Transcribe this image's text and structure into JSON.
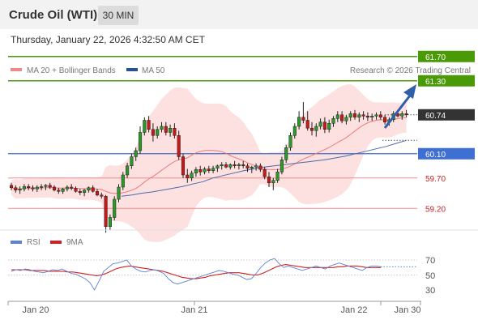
{
  "header": {
    "title": "Crude Oil (WTI)",
    "timeframe": "30 MIN"
  },
  "timestamp": "Thursday, January 22, 2026 4:32:50 AM CET",
  "legend": {
    "ma20_label": "MA 20 + Bollinger Bands",
    "ma50_label": "MA 50",
    "copyright": "Research © 2026 Trading Central",
    "rsi_label": "RSI",
    "ma9_label": "9MA"
  },
  "colors": {
    "green": "#4a9a08",
    "blue": "#3e6fd3",
    "red": "#f08a8a",
    "candle_up": "#2a9a2a",
    "candle_down": "#c81818",
    "band_fill": "#fde0e0",
    "ma20": "#f07878",
    "ma50": "#4a6aa8",
    "rsi": "#5b82d6",
    "rsi_ma": "#d02020",
    "current": "#333333"
  },
  "levels": [
    {
      "label": "61.70",
      "value": 61.7,
      "style": "green-box"
    },
    {
      "label": "61.30",
      "value": 61.3,
      "style": "green-box"
    },
    {
      "label": "60.74",
      "value": 60.74,
      "style": "current"
    },
    {
      "label": "60.10",
      "value": 60.1,
      "style": "blue-box"
    },
    {
      "label": "59.70",
      "value": 59.7,
      "style": "red-text"
    },
    {
      "label": "59.20",
      "value": 59.2,
      "style": "red-text"
    }
  ],
  "x_ticks": [
    "Jan 20",
    "Jan 21",
    "Jan 22",
    "Jan 30"
  ],
  "rsi_ticks": [
    "70",
    "50",
    "30"
  ],
  "chart_data": {
    "type": "candlestick",
    "ohlc": [
      [
        59.58,
        59.62,
        59.5,
        59.54
      ],
      [
        59.54,
        59.58,
        59.46,
        59.5
      ],
      [
        59.5,
        59.56,
        59.44,
        59.52
      ],
      [
        59.52,
        59.6,
        59.48,
        59.56
      ],
      [
        59.56,
        59.6,
        59.5,
        59.54
      ],
      [
        59.54,
        59.58,
        59.48,
        59.52
      ],
      [
        59.52,
        59.58,
        59.47,
        59.55
      ],
      [
        59.55,
        59.6,
        59.5,
        59.56
      ],
      [
        59.56,
        59.6,
        59.5,
        59.58
      ],
      [
        59.58,
        59.62,
        59.52,
        59.55
      ],
      [
        59.55,
        59.58,
        59.48,
        59.5
      ],
      [
        59.5,
        59.54,
        59.44,
        59.48
      ],
      [
        59.48,
        59.54,
        59.44,
        59.52
      ],
      [
        59.52,
        59.58,
        59.48,
        59.55
      ],
      [
        59.55,
        59.6,
        59.5,
        59.53
      ],
      [
        59.53,
        59.56,
        59.46,
        59.48
      ],
      [
        59.48,
        59.52,
        59.42,
        59.46
      ],
      [
        59.46,
        59.52,
        59.4,
        59.5
      ],
      [
        59.5,
        59.56,
        59.46,
        59.54
      ],
      [
        59.54,
        59.58,
        59.46,
        59.48
      ],
      [
        59.48,
        59.52,
        59.4,
        59.42
      ],
      [
        59.42,
        59.46,
        59.36,
        59.4
      ],
      [
        59.4,
        59.42,
        58.8,
        58.9
      ],
      [
        58.9,
        59.1,
        58.85,
        59.05
      ],
      [
        59.05,
        59.4,
        59.0,
        59.35
      ],
      [
        59.35,
        59.6,
        59.3,
        59.55
      ],
      [
        59.55,
        59.8,
        59.5,
        59.75
      ],
      [
        59.75,
        59.95,
        59.7,
        59.9
      ],
      [
        59.9,
        60.1,
        59.85,
        60.05
      ],
      [
        60.05,
        60.2,
        59.98,
        60.15
      ],
      [
        60.15,
        60.55,
        60.1,
        60.45
      ],
      [
        60.45,
        60.7,
        60.4,
        60.65
      ],
      [
        60.65,
        60.72,
        60.45,
        60.5
      ],
      [
        60.5,
        60.6,
        60.3,
        60.4
      ],
      [
        60.4,
        60.55,
        60.35,
        60.5
      ],
      [
        60.5,
        60.62,
        60.45,
        60.55
      ],
      [
        60.55,
        60.62,
        60.4,
        60.45
      ],
      [
        60.45,
        60.58,
        60.38,
        60.52
      ],
      [
        60.52,
        60.6,
        60.35,
        60.4
      ],
      [
        60.4,
        60.48,
        60.0,
        60.05
      ],
      [
        60.05,
        60.1,
        59.7,
        59.75
      ],
      [
        59.75,
        59.85,
        59.62,
        59.7
      ],
      [
        59.7,
        59.82,
        59.65,
        59.78
      ],
      [
        59.78,
        59.88,
        59.72,
        59.84
      ],
      [
        59.84,
        59.9,
        59.74,
        59.8
      ],
      [
        59.8,
        59.88,
        59.76,
        59.85
      ],
      [
        59.85,
        59.9,
        59.78,
        59.82
      ],
      [
        59.82,
        59.9,
        59.78,
        59.86
      ],
      [
        59.86,
        59.92,
        59.8,
        59.9
      ],
      [
        59.9,
        59.96,
        59.84,
        59.92
      ],
      [
        59.92,
        59.96,
        59.86,
        59.88
      ],
      [
        59.88,
        59.94,
        59.84,
        59.92
      ],
      [
        59.92,
        59.98,
        59.86,
        59.9
      ],
      [
        59.9,
        59.95,
        59.84,
        59.92
      ],
      [
        59.92,
        59.98,
        59.86,
        59.9
      ],
      [
        59.9,
        59.94,
        59.8,
        59.86
      ],
      [
        59.86,
        59.9,
        59.78,
        59.88
      ],
      [
        59.88,
        59.94,
        59.82,
        59.9
      ],
      [
        59.9,
        59.94,
        59.8,
        59.84
      ],
      [
        59.84,
        59.88,
        59.68,
        59.72
      ],
      [
        59.72,
        59.8,
        59.55,
        59.62
      ],
      [
        59.62,
        59.7,
        59.5,
        59.66
      ],
      [
        59.66,
        59.85,
        59.62,
        59.8
      ],
      [
        59.8,
        60.05,
        59.76,
        60.0
      ],
      [
        60.0,
        60.25,
        59.95,
        60.2
      ],
      [
        60.2,
        60.45,
        60.15,
        60.4
      ],
      [
        60.4,
        60.6,
        60.35,
        60.55
      ],
      [
        60.55,
        60.8,
        60.5,
        60.7
      ],
      [
        60.7,
        60.95,
        60.6,
        60.65
      ],
      [
        60.65,
        60.8,
        60.48,
        60.52
      ],
      [
        60.52,
        60.62,
        60.4,
        60.48
      ],
      [
        60.48,
        60.6,
        60.38,
        60.55
      ],
      [
        60.55,
        60.68,
        60.5,
        60.62
      ],
      [
        60.62,
        60.7,
        60.44,
        60.5
      ],
      [
        60.5,
        60.66,
        60.45,
        60.6
      ],
      [
        60.6,
        60.72,
        60.54,
        60.68
      ],
      [
        60.68,
        60.8,
        60.62,
        60.74
      ],
      [
        60.74,
        60.8,
        60.6,
        60.64
      ],
      [
        60.64,
        60.74,
        60.58,
        60.7
      ],
      [
        60.7,
        60.8,
        60.64,
        60.76
      ],
      [
        60.76,
        60.82,
        60.66,
        60.7
      ],
      [
        60.7,
        60.78,
        60.62,
        60.74
      ],
      [
        60.74,
        60.8,
        60.66,
        60.72
      ],
      [
        60.72,
        60.78,
        60.64,
        60.7
      ],
      [
        60.7,
        60.76,
        60.64,
        60.72
      ],
      [
        60.72,
        60.78,
        60.66,
        60.74
      ],
      [
        60.74,
        60.8,
        60.66,
        60.7
      ],
      [
        60.7,
        60.74,
        60.58,
        60.62
      ],
      [
        60.62,
        60.7,
        60.56,
        60.66
      ],
      [
        60.66,
        60.8,
        60.62,
        60.76
      ],
      [
        60.76,
        60.82,
        60.7,
        60.72
      ],
      [
        60.72,
        60.8,
        60.66,
        60.76
      ],
      [
        60.76,
        60.82,
        60.7,
        60.74
      ]
    ],
    "ma50": [
      59.4,
      59.42,
      59.45,
      59.47,
      59.5,
      59.53,
      59.56,
      59.6,
      59.64,
      59.7,
      59.74,
      59.78,
      59.82,
      59.85,
      59.88,
      59.9,
      59.92,
      59.94,
      59.96,
      59.98,
      60.0,
      60.03,
      60.06,
      60.1,
      60.14,
      60.18,
      60.22,
      60.27,
      60.32
    ],
    "rsi": [
      55,
      57,
      56,
      58,
      57,
      55,
      54,
      53,
      55,
      57,
      56,
      58,
      55,
      52,
      51,
      48,
      45,
      40,
      30,
      42,
      55,
      60,
      65,
      66,
      68,
      70,
      62,
      58,
      55,
      54,
      56,
      57,
      55,
      52,
      45,
      40,
      38,
      40,
      42,
      44,
      46,
      48,
      50,
      52,
      54,
      56,
      55,
      53,
      51,
      50,
      47,
      44,
      45,
      52,
      60,
      66,
      70,
      72,
      65,
      60,
      62,
      60,
      58,
      56,
      58,
      60,
      62,
      60,
      58,
      62,
      64,
      66,
      64,
      62,
      60,
      58,
      56,
      60,
      62,
      62,
      61
    ],
    "rsi_ma": [
      57,
      57,
      57,
      57,
      56,
      56,
      56,
      56,
      55,
      55,
      55,
      55,
      54,
      54,
      53,
      52,
      51,
      50,
      49,
      50,
      52,
      55,
      58,
      60,
      61,
      62,
      61,
      60,
      59,
      58,
      57,
      56,
      55,
      53,
      51,
      49,
      47,
      46,
      45,
      45,
      46,
      47,
      49,
      50,
      51,
      52,
      53,
      53,
      53,
      52,
      51,
      50,
      50,
      52,
      55,
      58,
      61,
      63,
      64,
      63,
      62,
      61,
      60,
      60,
      60,
      60,
      60,
      60,
      60,
      61,
      61,
      62,
      62,
      62,
      61,
      60,
      60,
      60,
      60
    ],
    "ylim": [
      58.75,
      61.95
    ]
  }
}
